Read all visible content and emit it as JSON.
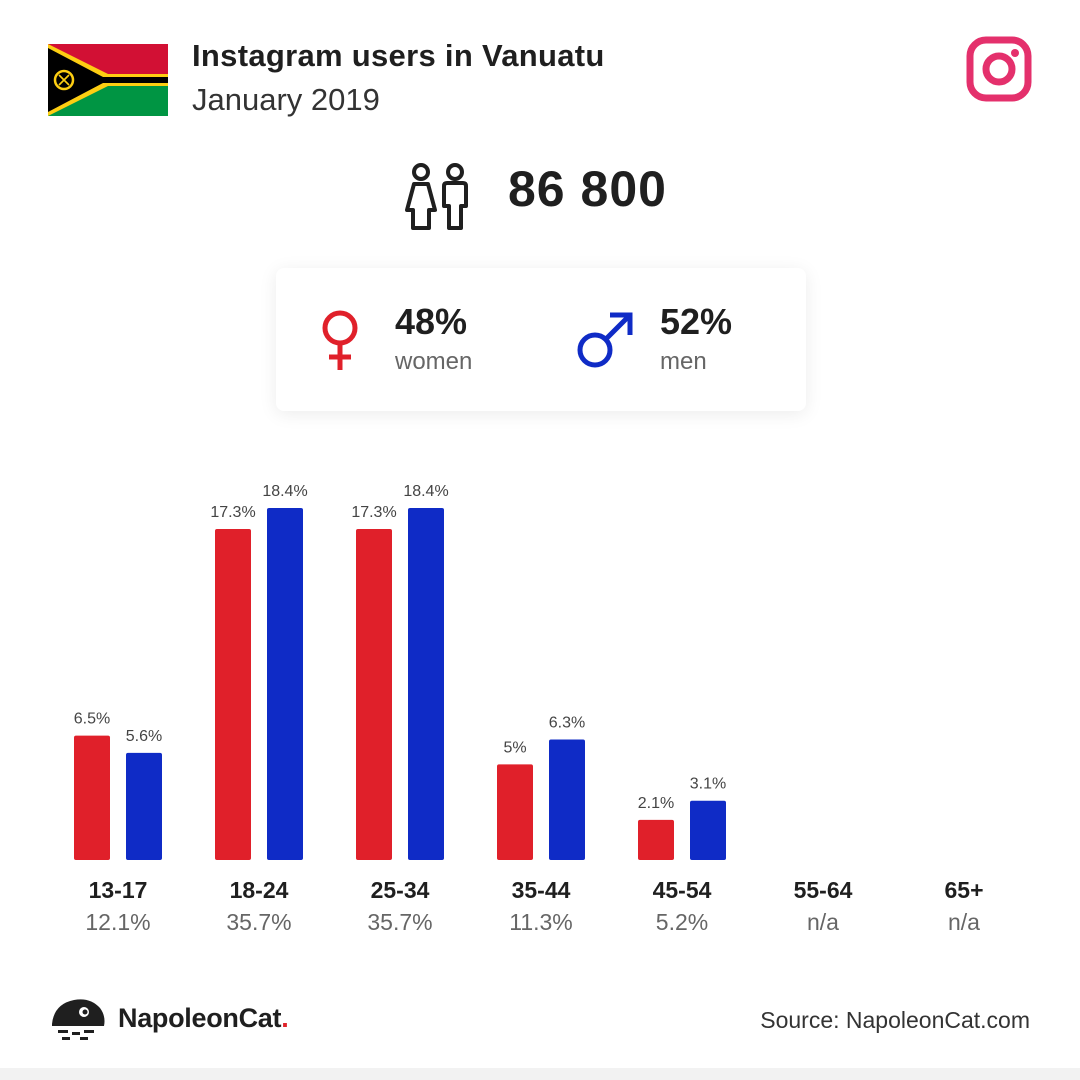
{
  "header": {
    "title": "Instagram users in Vanuatu",
    "subtitle": "January 2019"
  },
  "icons": {
    "flag": "vanuatu-flag-icon",
    "platform": "instagram-icon",
    "users": "people-icon",
    "women": "female-icon",
    "men": "male-icon",
    "logo": "napoleoncat-logo-icon"
  },
  "total_users": "86 800",
  "gender": {
    "women": {
      "pct": "48%",
      "label": "women"
    },
    "men": {
      "pct": "52%",
      "label": "men"
    }
  },
  "colors": {
    "women": "#e0202a",
    "men": "#0f2bc6",
    "instagram": "#e4306c"
  },
  "chart_data": {
    "type": "bar",
    "categories": [
      "13-17",
      "18-24",
      "25-34",
      "35-44",
      "45-54",
      "55-64",
      "65+"
    ],
    "totals": [
      "12.1%",
      "35.7%",
      "35.7%",
      "11.3%",
      "5.2%",
      "n/a",
      "n/a"
    ],
    "series": [
      {
        "key": "women",
        "values": [
          6.5,
          17.3,
          17.3,
          5,
          2.1,
          null,
          null
        ],
        "labels": [
          "6.5%",
          "17.3%",
          "17.3%",
          "5%",
          "2.1%",
          "",
          ""
        ]
      },
      {
        "key": "men",
        "values": [
          5.6,
          18.4,
          18.4,
          6.3,
          3.1,
          null,
          null
        ],
        "labels": [
          "5.6%",
          "18.4%",
          "18.4%",
          "6.3%",
          "3.1%",
          "",
          ""
        ]
      }
    ],
    "ylim": [
      0,
      18.4
    ]
  },
  "footer": {
    "brand_name": "NapoleonCat",
    "brand_dot": ".",
    "source": "Source: NapoleonCat.com"
  }
}
